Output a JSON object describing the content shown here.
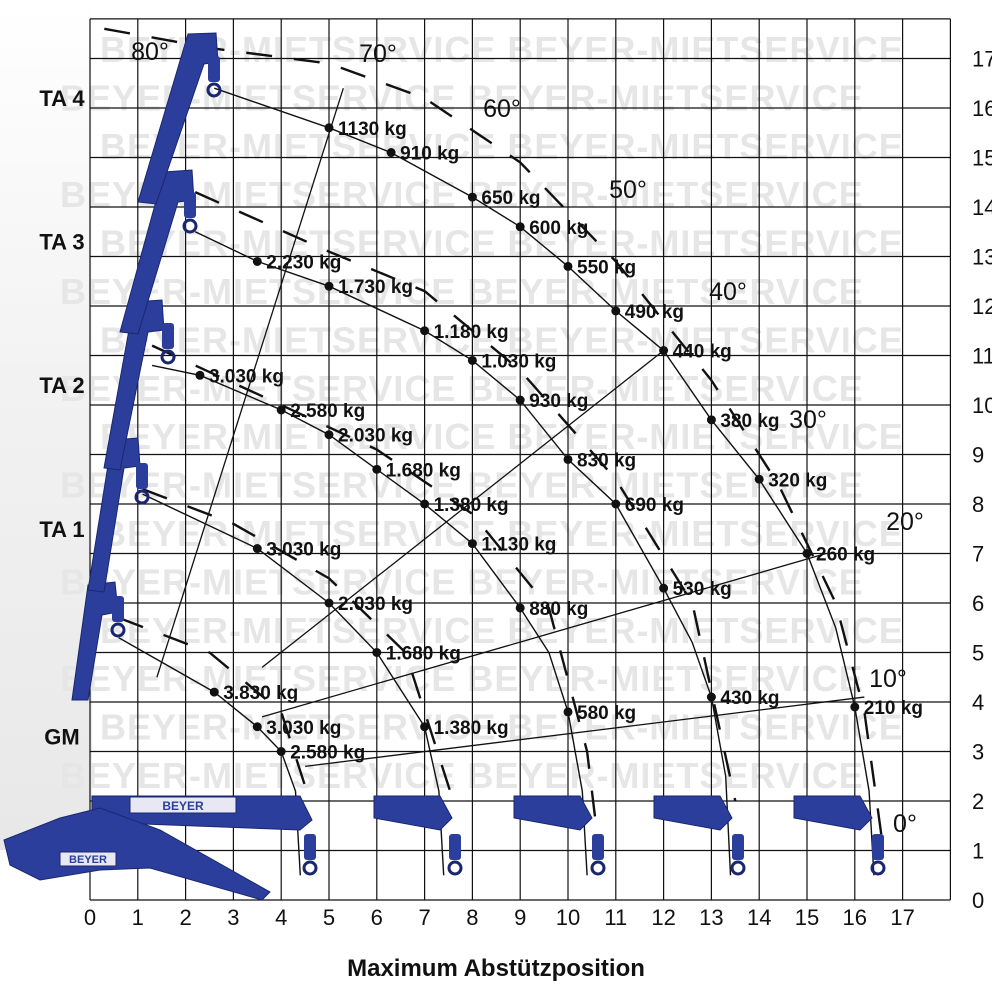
{
  "chart_data": {
    "type": "diagram",
    "x_ticks": [
      "0",
      "1",
      "2",
      "3",
      "4",
      "5",
      "6",
      "7",
      "8",
      "9",
      "10",
      "11",
      "12",
      "13",
      "14",
      "15",
      "16",
      "17"
    ],
    "y_ticks": [
      "0",
      "1",
      "2",
      "3",
      "4",
      "5",
      "6",
      "7",
      "8",
      "9",
      "10",
      "11",
      "12",
      "13",
      "14",
      "15",
      "16",
      "17"
    ],
    "xlim": [
      0,
      18
    ],
    "ylim": [
      0,
      17.8
    ],
    "sections": [
      {
        "label": "GM",
        "y": 3.3
      },
      {
        "label": "TA 1",
        "y": 7.5
      },
      {
        "label": "TA 2",
        "y": 10.4
      },
      {
        "label": "TA 3",
        "y": 13.3
      },
      {
        "label": "TA 4",
        "y": 16.2
      }
    ],
    "angles": [
      "0°",
      "10°",
      "20°",
      "30°",
      "40°",
      "50°",
      "60°",
      "70°",
      "80°"
    ],
    "watermark": "BEYER-MIETSERVICE",
    "brand": "BEYER",
    "load_points": [
      {
        "x": 5.0,
        "y": 15.6,
        "label": "1130 kg"
      },
      {
        "x": 6.3,
        "y": 15.1,
        "label": "910 kg"
      },
      {
        "x": 8.0,
        "y": 14.2,
        "label": "650 kg"
      },
      {
        "x": 9.0,
        "y": 13.6,
        "label": "600 kg"
      },
      {
        "x": 10.0,
        "y": 12.8,
        "label": "550 kg"
      },
      {
        "x": 11.0,
        "y": 11.9,
        "label": "490 kg"
      },
      {
        "x": 12.0,
        "y": 11.1,
        "label": "440 kg"
      },
      {
        "x": 13.0,
        "y": 9.7,
        "label": "380 kg"
      },
      {
        "x": 14.0,
        "y": 8.5,
        "label": "320 kg"
      },
      {
        "x": 15.0,
        "y": 7.0,
        "label": "260 kg"
      },
      {
        "x": 16.0,
        "y": 3.9,
        "label": "210 kg"
      },
      {
        "x": 3.5,
        "y": 12.9,
        "label": "2.230 kg"
      },
      {
        "x": 5.0,
        "y": 12.4,
        "label": "1.730 kg"
      },
      {
        "x": 7.0,
        "y": 11.5,
        "label": "1.180 kg"
      },
      {
        "x": 8.0,
        "y": 10.9,
        "label": "1.030 kg"
      },
      {
        "x": 9.0,
        "y": 10.1,
        "label": "930 kg"
      },
      {
        "x": 10.0,
        "y": 8.9,
        "label": "830 kg"
      },
      {
        "x": 11.0,
        "y": 8.0,
        "label": "690 kg"
      },
      {
        "x": 12.0,
        "y": 6.3,
        "label": "530 kg"
      },
      {
        "x": 13.0,
        "y": 4.1,
        "label": "430 kg"
      },
      {
        "x": 2.3,
        "y": 10.6,
        "label": "3.030 kg"
      },
      {
        "x": 4.0,
        "y": 9.9,
        "label": "2.580 kg"
      },
      {
        "x": 5.0,
        "y": 9.4,
        "label": "2.030 kg"
      },
      {
        "x": 6.0,
        "y": 8.7,
        "label": "1.680 kg"
      },
      {
        "x": 7.0,
        "y": 8.0,
        "label": "1.380 kg"
      },
      {
        "x": 8.0,
        "y": 7.2,
        "label": "1.130 kg"
      },
      {
        "x": 9.0,
        "y": 5.9,
        "label": "880 kg"
      },
      {
        "x": 10.0,
        "y": 3.8,
        "label": "580 kg"
      },
      {
        "x": 3.5,
        "y": 7.1,
        "label": "3.030 kg"
      },
      {
        "x": 5.0,
        "y": 6.0,
        "label": "2.030 kg"
      },
      {
        "x": 6.0,
        "y": 5.0,
        "label": "1.680 kg"
      },
      {
        "x": 7.0,
        "y": 3.5,
        "label": "1.380 kg"
      },
      {
        "x": 2.6,
        "y": 4.2,
        "label": "3.830 kg"
      },
      {
        "x": 3.5,
        "y": 3.5,
        "label": "3.030 kg"
      },
      {
        "x": 4.0,
        "y": 3.0,
        "label": "2.580 kg"
      }
    ]
  },
  "footer": "Maximum Abstützposition"
}
